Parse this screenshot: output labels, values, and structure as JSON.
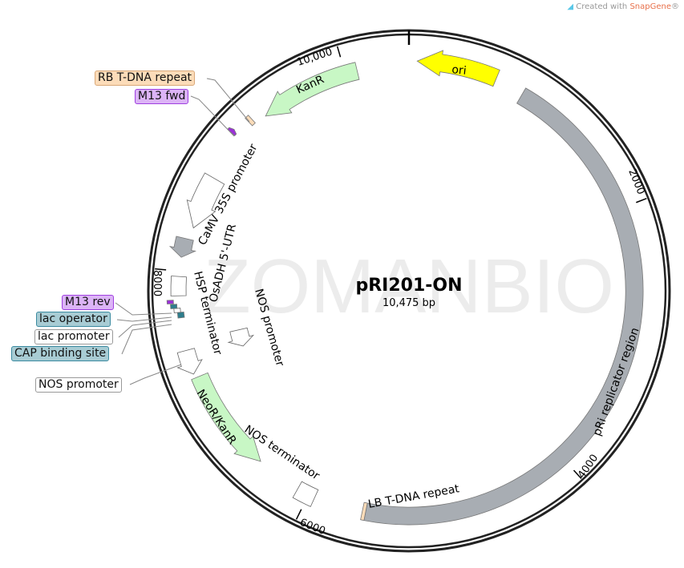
{
  "credit": {
    "prefix": "Created with ",
    "brand": "SnapGene",
    "suffix": "®",
    "icon": "snapgene-logo-icon"
  },
  "watermark": "ZOMANBIO",
  "plasmid": {
    "name": "pRI201-ON",
    "length_label": "10,475 bp",
    "length_bp": 10475
  },
  "ticks": [
    {
      "bp": 2000,
      "label": "2000"
    },
    {
      "bp": 4000,
      "label": "4000"
    },
    {
      "bp": 6000,
      "label": "6000"
    },
    {
      "bp": 8000,
      "label": "8000"
    },
    {
      "bp": 10000,
      "label": "10,000"
    }
  ],
  "features": [
    {
      "name": "ori",
      "start": 60,
      "end": 650,
      "direction": "reverse",
      "color": "#ffff00"
    },
    {
      "name": "pRi replicator region",
      "start": 870,
      "end": 5560,
      "direction": "none",
      "color": "#a8adb3"
    },
    {
      "name": "LB T-DNA repeat",
      "start": 5560,
      "end": 5585,
      "direction": "none",
      "color": "#fcdcb9"
    },
    {
      "name": "NOS terminator",
      "start": 5950,
      "end": 6090,
      "direction": "none",
      "color": "#ffffff"
    },
    {
      "name": "NeoR/KanR",
      "start": 6430,
      "end": 7210,
      "direction": "reverse",
      "color": "#c8f7c5"
    },
    {
      "name": "NOS promoter",
      "start": 7240,
      "end": 7420,
      "direction": "reverse",
      "color": "#ffffff"
    },
    {
      "name": "NOS promoter",
      "start": 7320,
      "end": 7480,
      "direction": "reverse",
      "color": "#ffffff"
    },
    {
      "name": "CAP binding site",
      "start": 7660,
      "end": 7700,
      "direction": "none",
      "color": "#2e7d8c"
    },
    {
      "name": "lac promoter",
      "start": 7700,
      "end": 7730,
      "direction": "none",
      "color": "#ffffff"
    },
    {
      "name": "lac operator",
      "start": 7730,
      "end": 7760,
      "direction": "none",
      "color": "#2e7d8c"
    },
    {
      "name": "M13 rev",
      "start": 7765,
      "end": 7790,
      "direction": "none",
      "color": "#9b30d9"
    },
    {
      "name": "HSP terminator",
      "start": 7820,
      "end": 7960,
      "direction": "none",
      "color": "#ffffff"
    },
    {
      "name": "OsADH 5'-UTR",
      "start": 8100,
      "end": 8240,
      "direction": "reverse",
      "color": "#a8adb3"
    },
    {
      "name": "CaMV 35S promoter",
      "start": 8330,
      "end": 8730,
      "direction": "reverse",
      "color": "#ffffff"
    },
    {
      "name": "M13 fwd",
      "start": 9070,
      "end": 9100,
      "direction": "forward",
      "color": "#9b30d9"
    },
    {
      "name": "RB T-DNA repeat",
      "start": 9210,
      "end": 9240,
      "direction": "none",
      "color": "#fcdcb9"
    },
    {
      "name": "KanR",
      "start": 9330,
      "end": 10090,
      "direction": "reverse",
      "color": "#c8f7c5"
    }
  ],
  "callouts": {
    "rb": {
      "label": "RB T-DNA repeat",
      "color": "#fcdcb9"
    },
    "m13fwd": {
      "label": "M13 fwd",
      "color": "#dcb4f6"
    },
    "m13rev": {
      "label": "M13 rev",
      "color": "#dcb4f6"
    },
    "lacop": {
      "label": "lac operator",
      "color": "#a8ccd4"
    },
    "lacprom": {
      "label": "lac promoter",
      "color": "#ffffff"
    },
    "cap": {
      "label": "CAP binding site",
      "color": "#a8ccd4"
    },
    "nosprom": {
      "label": "NOS promoter",
      "color": "#ffffff"
    }
  },
  "arc_labels": {
    "ori": "ori",
    "kanr": "KanR",
    "pri": "pRi replicator region",
    "lb": "LB T-DNA repeat",
    "nosterm": "NOS terminator",
    "neor": "NeoR/KanR",
    "nosprom_inner": "NOS promoter",
    "hsp": "HSP terminator",
    "osadh": "OsADH 5'-UTR",
    "camv": "CaMV 35S promoter"
  }
}
